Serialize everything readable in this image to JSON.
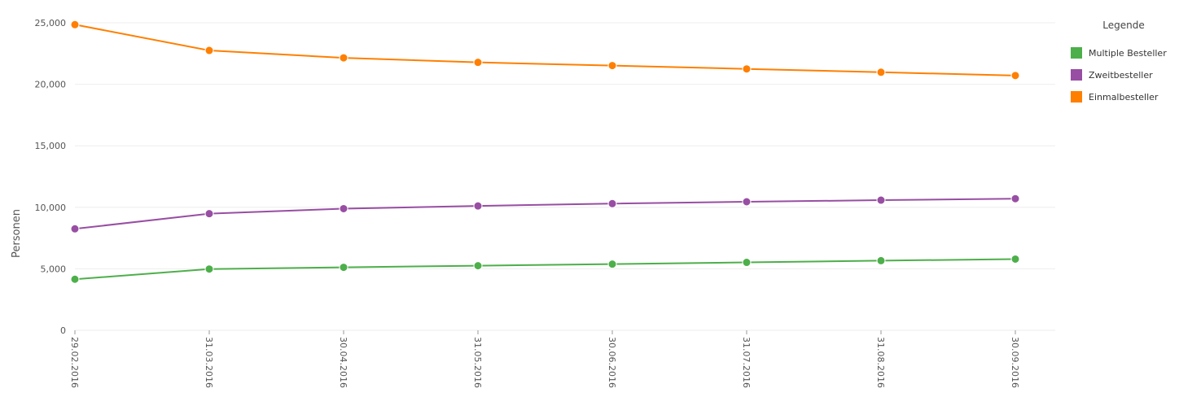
{
  "chart_data": {
    "type": "line",
    "ylabel": "Personen",
    "xlabel": "",
    "ylim": [
      0,
      25000
    ],
    "y_ticks": [
      0,
      5000,
      10000,
      15000,
      20000,
      25000
    ],
    "y_tick_labels": [
      "0",
      "5,000",
      "10,000",
      "15,000",
      "20,000",
      "25,000"
    ],
    "grid": true,
    "legend_position": "right",
    "legend_title": "Legende",
    "x": [
      "29.02.2016",
      "31.03.2016",
      "30.04.2016",
      "31.05.2016",
      "30.06.2016",
      "31.07.2016",
      "31.08.2016",
      "30.09.2016"
    ],
    "series": [
      {
        "name": "Multiple Besteller",
        "color": "#4daf4a",
        "values": [
          4150,
          4980,
          5120,
          5250,
          5380,
          5520,
          5660,
          5790
        ]
      },
      {
        "name": "Zweitbesteller",
        "color": "#984ea3",
        "values": [
          8250,
          9480,
          9890,
          10110,
          10300,
          10450,
          10580,
          10700
        ]
      },
      {
        "name": "Einmalbesteller",
        "color": "#ff7f00",
        "values": [
          24850,
          22750,
          22150,
          21780,
          21520,
          21250,
          20980,
          20710
        ]
      }
    ]
  }
}
